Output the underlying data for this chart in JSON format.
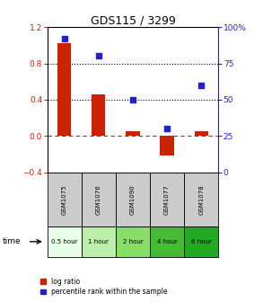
{
  "title": "GDS115 / 3299",
  "samples": [
    "GSM1075",
    "GSM1076",
    "GSM1090",
    "GSM1077",
    "GSM1078"
  ],
  "time_labels": [
    "0.5 hour",
    "1 hour",
    "2 hour",
    "4 hour",
    "6 hour"
  ],
  "time_colors": [
    "#e8ffe8",
    "#bbeeaa",
    "#88dd66",
    "#44bb33",
    "#22aa22"
  ],
  "log_ratio": [
    1.02,
    0.46,
    0.05,
    -0.22,
    0.05
  ],
  "percentile": [
    92,
    80,
    50,
    30,
    60
  ],
  "bar_color": "#cc2200",
  "dot_color": "#2222cc",
  "ylim_left": [
    -0.4,
    1.2
  ],
  "ylim_right": [
    0,
    100
  ],
  "yticks_left": [
    -0.4,
    0.0,
    0.4,
    0.8,
    1.2
  ],
  "yticks_right": [
    0,
    25,
    50,
    75,
    100
  ],
  "hline_dotted_vals": [
    0.8,
    0.4
  ],
  "hline_dashed_val": 0,
  "background_color": "#ffffff",
  "legend_log": "log ratio",
  "legend_pct": "percentile rank within the sample",
  "gsm_box_color": "#cccccc",
  "figw": 2.93,
  "figh": 3.36
}
